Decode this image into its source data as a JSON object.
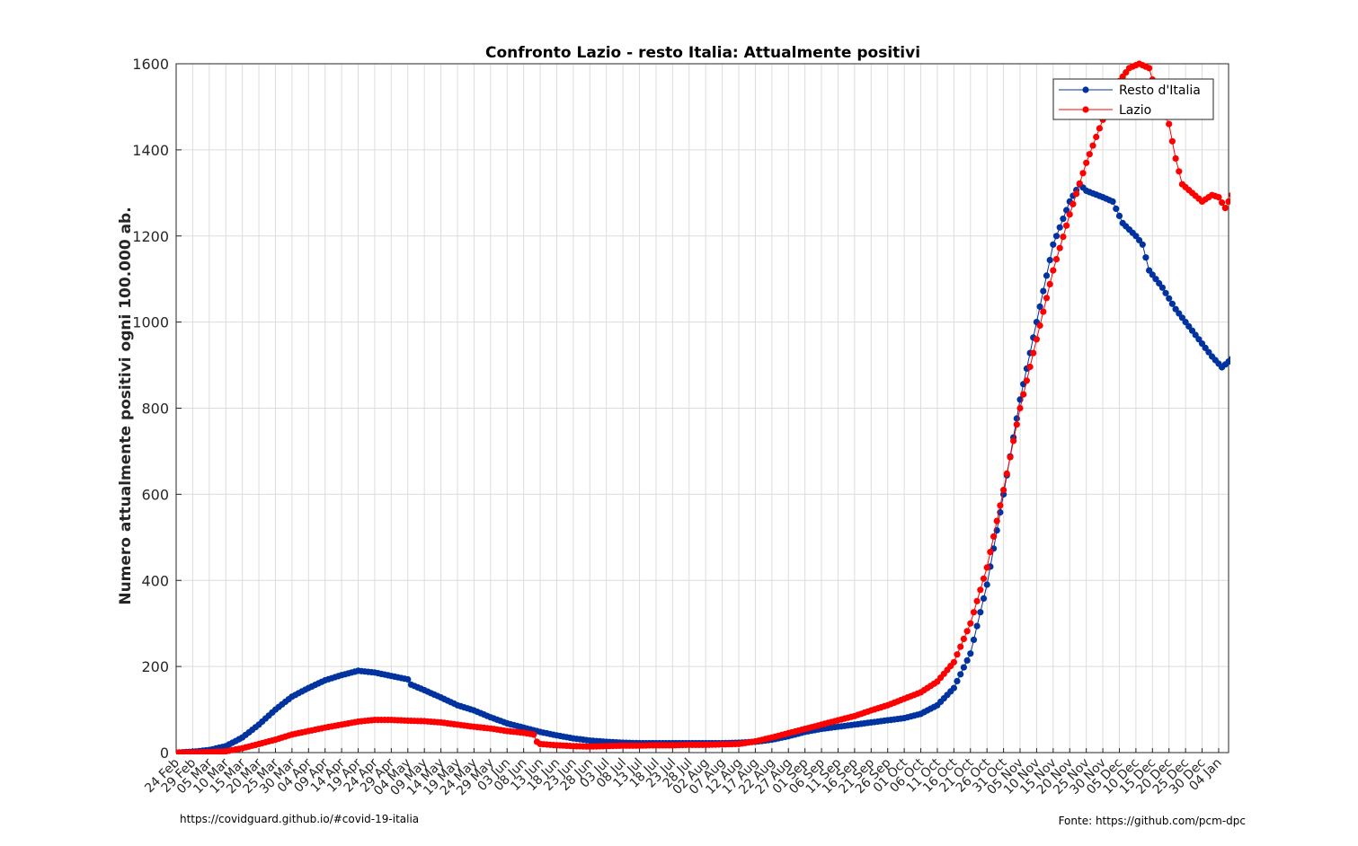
{
  "chart_data": {
    "type": "line",
    "title": "Confronto Lazio - resto Italia: Attualmente positivi",
    "ylabel": "Numero attualmente positivi ogni 100.000 ab.",
    "xlabel": "",
    "ylim": [
      0,
      1600
    ],
    "yticks": [
      0,
      200,
      400,
      600,
      800,
      1000,
      1200,
      1400,
      1600
    ],
    "grid": true,
    "legend_position": "top-right",
    "x_tick_labels": [
      "24 Feb",
      "29 Feb",
      "05 Mar",
      "10 Mar",
      "15 Mar",
      "20 Mar",
      "25 Mar",
      "30 Mar",
      "04 Apr",
      "09 Apr",
      "14 Apr",
      "19 Apr",
      "24 Apr",
      "29 Apr",
      "04 May",
      "09 May",
      "14 May",
      "19 May",
      "24 May",
      "29 May",
      "03 Jun",
      "08 Jun",
      "13 Jun",
      "18 Jun",
      "23 Jun",
      "28 Jun",
      "03 Jul",
      "08 Jul",
      "13 Jul",
      "18 Jul",
      "23 Jul",
      "28 Jul",
      "02 Aug",
      "07 Aug",
      "12 Aug",
      "17 Aug",
      "22 Aug",
      "27 Aug",
      "01 Sep",
      "06 Sep",
      "11 Sep",
      "16 Sep",
      "21 Sep",
      "26 Sep",
      "01 Oct",
      "06 Oct",
      "11 Oct",
      "16 Oct",
      "21 Oct",
      "26 Oct",
      "31 Oct",
      "05 Nov",
      "10 Nov",
      "15 Nov",
      "20 Nov",
      "25 Nov",
      "30 Nov",
      "05 Dec",
      "10 Dec",
      "15 Dec",
      "20 Dec",
      "25 Dec",
      "30 Dec",
      "04 Jan"
    ],
    "x_range": [
      "2020-02-24",
      "2021-01-07"
    ],
    "series": [
      {
        "name": "Resto d'Italia",
        "color": "#0033a0",
        "points": [
          [
            "2020-02-24",
            0
          ],
          [
            "2020-02-29",
            2
          ],
          [
            "2020-03-05",
            6
          ],
          [
            "2020-03-10",
            15
          ],
          [
            "2020-03-15",
            35
          ],
          [
            "2020-03-20",
            65
          ],
          [
            "2020-03-25",
            100
          ],
          [
            "2020-03-30",
            130
          ],
          [
            "2020-04-04",
            150
          ],
          [
            "2020-04-09",
            168
          ],
          [
            "2020-04-14",
            180
          ],
          [
            "2020-04-19",
            190
          ],
          [
            "2020-04-24",
            186
          ],
          [
            "2020-04-29",
            178
          ],
          [
            "2020-05-04",
            170
          ],
          [
            "2020-05-05",
            158
          ],
          [
            "2020-05-09",
            145
          ],
          [
            "2020-05-14",
            128
          ],
          [
            "2020-05-19",
            110
          ],
          [
            "2020-05-24",
            98
          ],
          [
            "2020-05-29",
            82
          ],
          [
            "2020-06-03",
            68
          ],
          [
            "2020-06-08",
            58
          ],
          [
            "2020-06-13",
            48
          ],
          [
            "2020-06-18",
            40
          ],
          [
            "2020-06-23",
            33
          ],
          [
            "2020-06-28",
            28
          ],
          [
            "2020-07-03",
            25
          ],
          [
            "2020-07-08",
            23
          ],
          [
            "2020-07-13",
            22
          ],
          [
            "2020-07-18",
            22
          ],
          [
            "2020-07-23",
            22
          ],
          [
            "2020-07-28",
            22
          ],
          [
            "2020-08-02",
            22
          ],
          [
            "2020-08-07",
            22
          ],
          [
            "2020-08-12",
            23
          ],
          [
            "2020-08-17",
            25
          ],
          [
            "2020-08-22",
            30
          ],
          [
            "2020-08-27",
            38
          ],
          [
            "2020-09-01",
            48
          ],
          [
            "2020-09-06",
            55
          ],
          [
            "2020-09-11",
            60
          ],
          [
            "2020-09-16",
            65
          ],
          [
            "2020-09-21",
            70
          ],
          [
            "2020-09-26",
            75
          ],
          [
            "2020-10-01",
            80
          ],
          [
            "2020-10-06",
            90
          ],
          [
            "2020-10-11",
            110
          ],
          [
            "2020-10-16",
            150
          ],
          [
            "2020-10-21",
            230
          ],
          [
            "2020-10-26",
            390
          ],
          [
            "2020-10-31",
            600
          ],
          [
            "2020-11-05",
            820
          ],
          [
            "2020-11-10",
            1000
          ],
          [
            "2020-11-15",
            1180
          ],
          [
            "2020-11-20",
            1280
          ],
          [
            "2020-11-23",
            1320
          ],
          [
            "2020-11-25",
            1305
          ],
          [
            "2020-11-30",
            1290
          ],
          [
            "2020-12-03",
            1280
          ],
          [
            "2020-12-06",
            1230
          ],
          [
            "2020-12-10",
            1200
          ],
          [
            "2020-12-12",
            1180
          ],
          [
            "2020-12-14",
            1120
          ],
          [
            "2020-12-18",
            1080
          ],
          [
            "2020-12-22",
            1030
          ],
          [
            "2020-12-26",
            990
          ],
          [
            "2020-12-30",
            950
          ],
          [
            "2021-01-02",
            920
          ],
          [
            "2021-01-05",
            895
          ],
          [
            "2021-01-08",
            915
          ],
          [
            "2021-01-11",
            900
          ],
          [
            "2021-01-14",
            905
          ]
        ]
      },
      {
        "name": "Lazio",
        "color": "#ff0000",
        "points": [
          [
            "2020-02-24",
            0
          ],
          [
            "2020-02-29",
            0
          ],
          [
            "2020-03-05",
            1
          ],
          [
            "2020-03-10",
            3
          ],
          [
            "2020-03-15",
            10
          ],
          [
            "2020-03-20",
            20
          ],
          [
            "2020-03-25",
            30
          ],
          [
            "2020-03-30",
            42
          ],
          [
            "2020-04-04",
            50
          ],
          [
            "2020-04-09",
            58
          ],
          [
            "2020-04-14",
            65
          ],
          [
            "2020-04-19",
            72
          ],
          [
            "2020-04-24",
            76
          ],
          [
            "2020-04-29",
            76
          ],
          [
            "2020-05-04",
            74
          ],
          [
            "2020-05-09",
            73
          ],
          [
            "2020-05-14",
            70
          ],
          [
            "2020-05-19",
            65
          ],
          [
            "2020-05-24",
            60
          ],
          [
            "2020-05-29",
            56
          ],
          [
            "2020-06-03",
            50
          ],
          [
            "2020-06-08",
            46
          ],
          [
            "2020-06-11",
            42
          ],
          [
            "2020-06-12",
            25
          ],
          [
            "2020-06-13",
            20
          ],
          [
            "2020-06-18",
            17
          ],
          [
            "2020-06-23",
            15
          ],
          [
            "2020-06-28",
            14
          ],
          [
            "2020-07-03",
            15
          ],
          [
            "2020-07-08",
            16
          ],
          [
            "2020-07-13",
            16
          ],
          [
            "2020-07-18",
            17
          ],
          [
            "2020-07-23",
            17
          ],
          [
            "2020-07-28",
            18
          ],
          [
            "2020-08-02",
            18
          ],
          [
            "2020-08-07",
            19
          ],
          [
            "2020-08-12",
            20
          ],
          [
            "2020-08-17",
            26
          ],
          [
            "2020-08-22",
            35
          ],
          [
            "2020-08-27",
            45
          ],
          [
            "2020-09-01",
            55
          ],
          [
            "2020-09-06",
            65
          ],
          [
            "2020-09-11",
            75
          ],
          [
            "2020-09-16",
            85
          ],
          [
            "2020-09-21",
            98
          ],
          [
            "2020-09-26",
            110
          ],
          [
            "2020-10-01",
            125
          ],
          [
            "2020-10-06",
            140
          ],
          [
            "2020-10-11",
            165
          ],
          [
            "2020-10-16",
            210
          ],
          [
            "2020-10-21",
            300
          ],
          [
            "2020-10-26",
            430
          ],
          [
            "2020-10-31",
            610
          ],
          [
            "2020-11-05",
            800
          ],
          [
            "2020-11-10",
            960
          ],
          [
            "2020-11-15",
            1120
          ],
          [
            "2020-11-20",
            1250
          ],
          [
            "2020-11-25",
            1370
          ],
          [
            "2020-11-30",
            1470
          ],
          [
            "2020-12-05",
            1560
          ],
          [
            "2020-12-08",
            1590
          ],
          [
            "2020-12-11",
            1600
          ],
          [
            "2020-12-14",
            1590
          ],
          [
            "2020-12-17",
            1510
          ],
          [
            "2020-12-20",
            1460
          ],
          [
            "2020-12-22",
            1380
          ],
          [
            "2020-12-24",
            1320
          ],
          [
            "2020-12-27",
            1300
          ],
          [
            "2020-12-30",
            1280
          ],
          [
            "2021-01-02",
            1295
          ],
          [
            "2021-01-04",
            1290
          ],
          [
            "2021-01-06",
            1265
          ],
          [
            "2021-01-08",
            1295
          ],
          [
            "2021-01-11",
            1310
          ],
          [
            "2021-01-14",
            1320
          ]
        ]
      }
    ]
  },
  "footer": {
    "left": "https://covidguard.github.io/#covid-19-italia",
    "right": "Fonte: https://github.com/pcm-dpc"
  }
}
